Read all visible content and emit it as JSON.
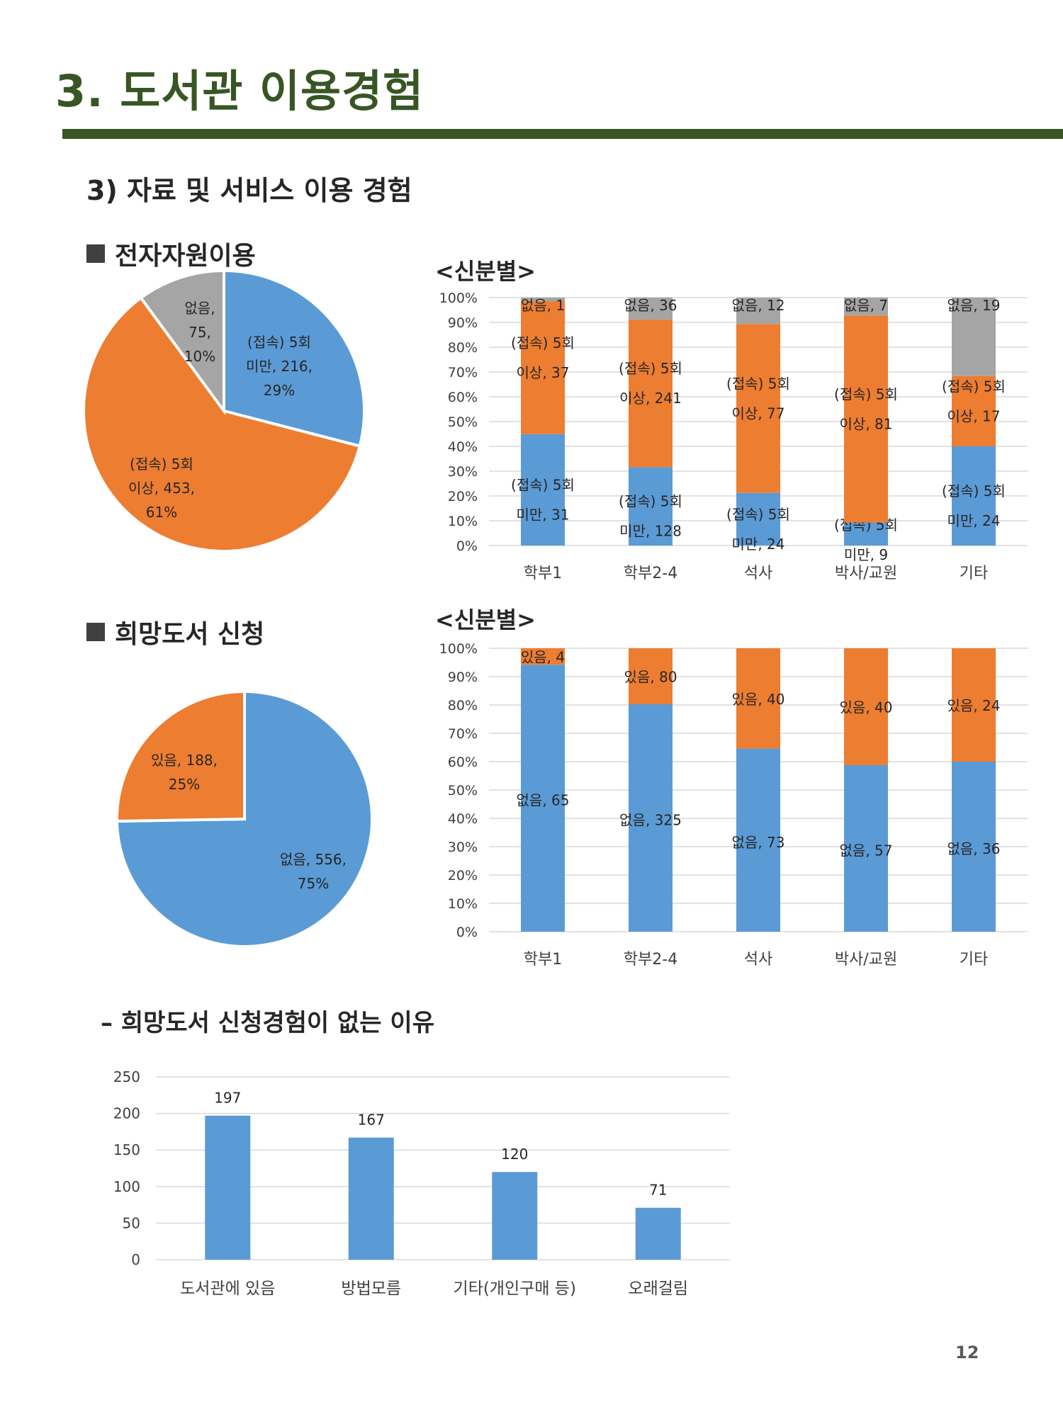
{
  "page": {
    "title": "3. 도서관 이용경험",
    "section": "3) 자료 및 서비스 이용 경험",
    "sub1": "전자자원이용",
    "sub2": "희망도서 신청",
    "by_status_title": "<신분별>",
    "reason_title": "– 희망도서 신청경험이 없는 이유",
    "page_number": "12"
  },
  "colors": {
    "blue": "#5b9bd5",
    "orange": "#ed7d31",
    "gray": "#a5a5a5",
    "green": "#375623",
    "grid": "#d9d9d9"
  },
  "chart_data": [
    {
      "id": "eres-pie",
      "type": "pie",
      "slices": [
        {
          "name": "(접속) 5회 미만",
          "value": 216,
          "percent": "29%",
          "color": "#5b9bd5",
          "label_lines": [
            "(접속) 5회",
            "미만, 216,",
            "29%"
          ]
        },
        {
          "name": "(접속) 5회 이상",
          "value": 453,
          "percent": "61%",
          "color": "#ed7d31",
          "label_lines": [
            "(접속) 5회",
            "이상, 453,",
            "61%"
          ]
        },
        {
          "name": "없음",
          "value": 75,
          "percent": "10%",
          "color": "#a5a5a5",
          "label_lines": [
            "없음,",
            "75,",
            "10%"
          ]
        }
      ]
    },
    {
      "id": "eres-stacked",
      "type": "bar",
      "stacked_percent": true,
      "categories": [
        "학부1",
        "학부2-4",
        "석사",
        "박사/교원",
        "기타"
      ],
      "y_ticks": [
        "0%",
        "10%",
        "20%",
        "30%",
        "40%",
        "50%",
        "60%",
        "70%",
        "80%",
        "90%",
        "100%"
      ],
      "series": [
        {
          "name": "(접속) 5회 미만",
          "color": "#5b9bd5",
          "values": [
            31,
            128,
            24,
            9,
            24
          ],
          "labels": [
            [
              "(접속) 5회",
              "미만, 31"
            ],
            [
              "(접속) 5회",
              "미만, 128"
            ],
            [
              "(접속) 5회",
              "미만, 24"
            ],
            [
              "(접속) 5회",
              "미만, 9"
            ],
            [
              "(접속) 5회",
              "미만, 24"
            ]
          ]
        },
        {
          "name": "(접속) 5회 이상",
          "color": "#ed7d31",
          "values": [
            37,
            241,
            77,
            81,
            17
          ],
          "labels": [
            [
              "(접속) 5회",
              "이상, 37"
            ],
            [
              "(접속) 5회",
              "이상, 241"
            ],
            [
              "(접속) 5회",
              "이상, 77"
            ],
            [
              "(접속) 5회",
              "이상, 81"
            ],
            [
              "(접속) 5회",
              "이상, 17"
            ]
          ]
        },
        {
          "name": "없음",
          "color": "#a5a5a5",
          "values": [
            1,
            36,
            12,
            7,
            19
          ],
          "labels": [
            [
              "없음, 1"
            ],
            [
              "없음, 36"
            ],
            [
              "없음, 12"
            ],
            [
              "없음, 7"
            ],
            [
              "없음, 19"
            ]
          ]
        }
      ]
    },
    {
      "id": "req-pie",
      "type": "pie",
      "slices": [
        {
          "name": "없음",
          "value": 556,
          "percent": "75%",
          "color": "#5b9bd5",
          "label_lines": [
            "없음, 556,",
            "75%"
          ]
        },
        {
          "name": "있음",
          "value": 188,
          "percent": "25%",
          "color": "#ed7d31",
          "label_lines": [
            "있음, 188,",
            "25%"
          ]
        }
      ]
    },
    {
      "id": "req-stacked",
      "type": "bar",
      "stacked_percent": true,
      "categories": [
        "학부1",
        "학부2-4",
        "석사",
        "박사/교원",
        "기타"
      ],
      "y_ticks": [
        "0%",
        "10%",
        "20%",
        "30%",
        "40%",
        "50%",
        "60%",
        "70%",
        "80%",
        "90%",
        "100%"
      ],
      "series": [
        {
          "name": "없음",
          "color": "#5b9bd5",
          "values": [
            65,
            325,
            73,
            57,
            36
          ],
          "labels": [
            [
              "없음, 65"
            ],
            [
              "없음, 325"
            ],
            [
              "없음, 73"
            ],
            [
              "없음, 57"
            ],
            [
              "없음, 36"
            ]
          ]
        },
        {
          "name": "있음",
          "color": "#ed7d31",
          "values": [
            4,
            80,
            40,
            40,
            24
          ],
          "labels": [
            [
              "있음, 4"
            ],
            [
              "있음, 80"
            ],
            [
              "있음, 40"
            ],
            [
              "있음, 40"
            ],
            [
              "있음, 24"
            ]
          ]
        }
      ]
    },
    {
      "id": "reason-bar",
      "type": "bar",
      "categories": [
        "도서관에 있음",
        "방법모름",
        "기타(개인구매 등)",
        "오래걸림"
      ],
      "values": [
        197,
        167,
        120,
        71
      ],
      "ylim": [
        0,
        250
      ],
      "y_ticks": [
        "0",
        "50",
        "100",
        "150",
        "200",
        "250"
      ],
      "color": "#5b9bd5"
    }
  ]
}
